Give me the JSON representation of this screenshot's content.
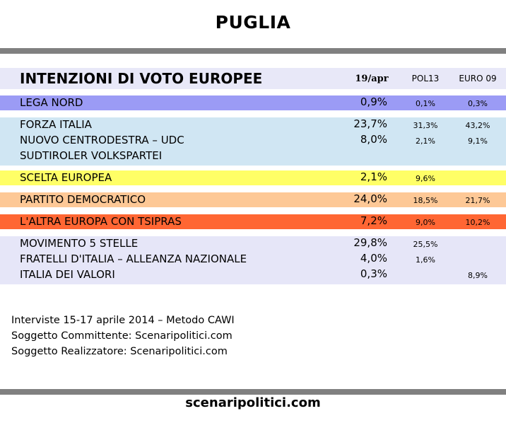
{
  "page_title": "PUGLIA",
  "colors": {
    "rule": "#808080",
    "header": "#e8e8f8",
    "lega": "#9b9bf5",
    "centrodestra": "#d0e6f3",
    "scelta": "#ffff66",
    "pd": "#fdc896",
    "tsipras": "#ff6633",
    "altri": "#e6e6f8"
  },
  "chart_data": {
    "type": "table",
    "title": "INTENZIONI DI VOTO EUROPEE",
    "columns": [
      "19/apr",
      "POL13",
      "EURO 09"
    ],
    "groups": [
      {
        "color": "#9b9bf5",
        "rows": [
          {
            "party": "LEGA NORD",
            "apr19": "0,9%",
            "pol13": "0,1%",
            "euro09": "0,3%"
          }
        ]
      },
      {
        "color": "#d0e6f3",
        "rows": [
          {
            "party": "FORZA ITALIA",
            "apr19": "23,7%",
            "pol13": "31,3%",
            "euro09": "43,2%"
          },
          {
            "party": "NUOVO CENTRODESTRA – UDC",
            "apr19": "8,0%",
            "pol13": "2,1%",
            "euro09": "9,1%"
          },
          {
            "party": "SUDTIROLER VOLKSPARTEI",
            "apr19": "",
            "pol13": "",
            "euro09": ""
          }
        ]
      },
      {
        "color": "#ffff66",
        "rows": [
          {
            "party": "SCELTA EUROPEA",
            "apr19": "2,1%",
            "pol13": "9,6%",
            "euro09": ""
          }
        ]
      },
      {
        "color": "#fdc896",
        "rows": [
          {
            "party": "PARTITO DEMOCRATICO",
            "apr19": "24,0%",
            "pol13": "18,5%",
            "euro09": "21,7%"
          }
        ]
      },
      {
        "color": "#ff6633",
        "rows": [
          {
            "party": "L'ALTRA EUROPA CON TSIPRAS",
            "apr19": "7,2%",
            "pol13": "9,0%",
            "euro09": "10,2%"
          }
        ]
      },
      {
        "color": "#e6e6f8",
        "rows": [
          {
            "party": "MOVIMENTO 5 STELLE",
            "apr19": "29,8%",
            "pol13": "25,5%",
            "euro09": ""
          },
          {
            "party": "FRATELLI D'ITALIA – ALLEANZA NAZIONALE",
            "apr19": "4,0%",
            "pol13": "1,6%",
            "euro09": ""
          },
          {
            "party": "ITALIA DEI VALORI",
            "apr19": "0,3%",
            "pol13": "",
            "euro09": "8,9%"
          }
        ]
      }
    ]
  },
  "footer": {
    "lines": [
      "Interviste 15-17 aprile 2014 – Metodo CAWI",
      "Soggetto Committente: Scenaripolitici.com",
      "Soggetto Realizzatore: Scenaripolitici.com"
    ],
    "site": "scenaripolitici.com"
  }
}
